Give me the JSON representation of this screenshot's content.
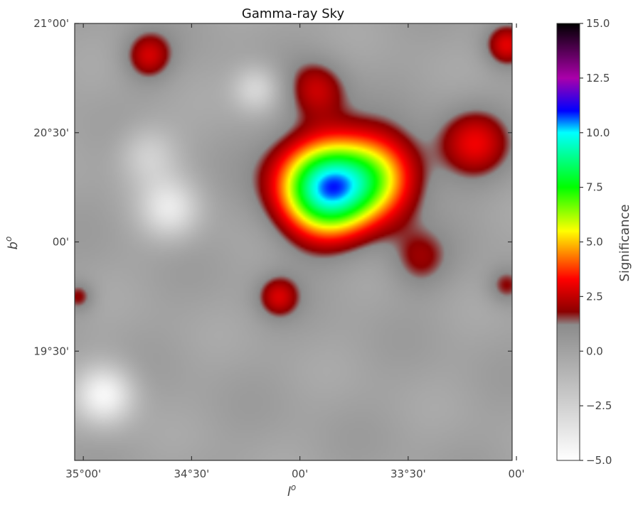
{
  "chart_data": {
    "type": "heatmap",
    "title": "Gamma-ray Sky",
    "xlabel": "l",
    "xlabel_superscript": "o",
    "ylabel": "b",
    "ylabel_superscript": "o",
    "x_tick_labels": [
      "35°00'",
      "34°30'",
      "00'",
      "33°30'",
      "00'"
    ],
    "x_tick_values_deg": [
      35.0,
      34.5,
      34.0,
      33.5,
      33.0
    ],
    "xlim_deg": [
      35.04,
      33.02
    ],
    "y_tick_labels": [
      "21°00'",
      "20°30'",
      "00'",
      "19°30'"
    ],
    "y_tick_values_deg": [
      21.0,
      20.5,
      20.0,
      19.5
    ],
    "ylim_deg": [
      19.0,
      21.0
    ],
    "colorbar": {
      "label": "Significance",
      "range": [
        -5.0,
        15.0
      ],
      "tick_labels": [
        "15.0",
        "12.5",
        "10.0",
        "7.5",
        "5.0",
        "2.5",
        "0.0",
        "−2.5",
        "−5.0"
      ],
      "tick_values": [
        15.0,
        12.5,
        10.0,
        7.5,
        5.0,
        2.5,
        0.0,
        -2.5,
        -5.0
      ],
      "colormap_stops": [
        {
          "value": -5.0,
          "color": "#ffffff"
        },
        {
          "value": 1.2,
          "color": "#8c8c8c"
        },
        {
          "value": 1.8,
          "color": "#8b0000"
        },
        {
          "value": 3.3,
          "color": "#ff0000"
        },
        {
          "value": 5.5,
          "color": "#ffff00"
        },
        {
          "value": 7.5,
          "color": "#00ff00"
        },
        {
          "value": 10.0,
          "color": "#00ffff"
        },
        {
          "value": 11.0,
          "color": "#0000ff"
        },
        {
          "value": 12.5,
          "color": "#aa00aa"
        },
        {
          "value": 15.0,
          "color": "#000000"
        }
      ]
    },
    "sources": [
      {
        "l": 33.88,
        "b": 20.25,
        "peak_sig": 9.8,
        "sigma_deg": 0.16
      },
      {
        "l": 33.62,
        "b": 20.3,
        "peak_sig": 4.2,
        "sigma_deg": 0.14
      },
      {
        "l": 33.2,
        "b": 20.45,
        "peak_sig": 2.8,
        "sigma_deg": 0.12
      },
      {
        "l": 33.05,
        "b": 20.9,
        "peak_sig": 2.8,
        "sigma_deg": 0.07
      },
      {
        "l": 34.7,
        "b": 20.85,
        "peak_sig": 2.6,
        "sigma_deg": 0.08
      },
      {
        "l": 34.1,
        "b": 19.75,
        "peak_sig": 2.5,
        "sigma_deg": 0.07
      },
      {
        "l": 33.92,
        "b": 20.7,
        "peak_sig": 2.4,
        "sigma_deg": 0.1
      },
      {
        "l": 33.45,
        "b": 19.92,
        "peak_sig": 1.8,
        "sigma_deg": 0.1
      },
      {
        "l": 35.02,
        "b": 19.75,
        "peak_sig": 2.0,
        "sigma_deg": 0.05
      },
      {
        "l": 33.05,
        "b": 19.8,
        "peak_sig": 1.9,
        "sigma_deg": 0.06
      },
      {
        "l": 34.9,
        "b": 19.3,
        "peak_sig": -4.5,
        "sigma_deg": 0.1
      },
      {
        "l": 34.6,
        "b": 20.15,
        "peak_sig": -3.5,
        "sigma_deg": 0.1
      },
      {
        "l": 34.2,
        "b": 20.7,
        "peak_sig": -3.0,
        "sigma_deg": 0.08
      },
      {
        "l": 34.7,
        "b": 20.4,
        "peak_sig": -2.5,
        "sigma_deg": 0.1
      }
    ]
  }
}
